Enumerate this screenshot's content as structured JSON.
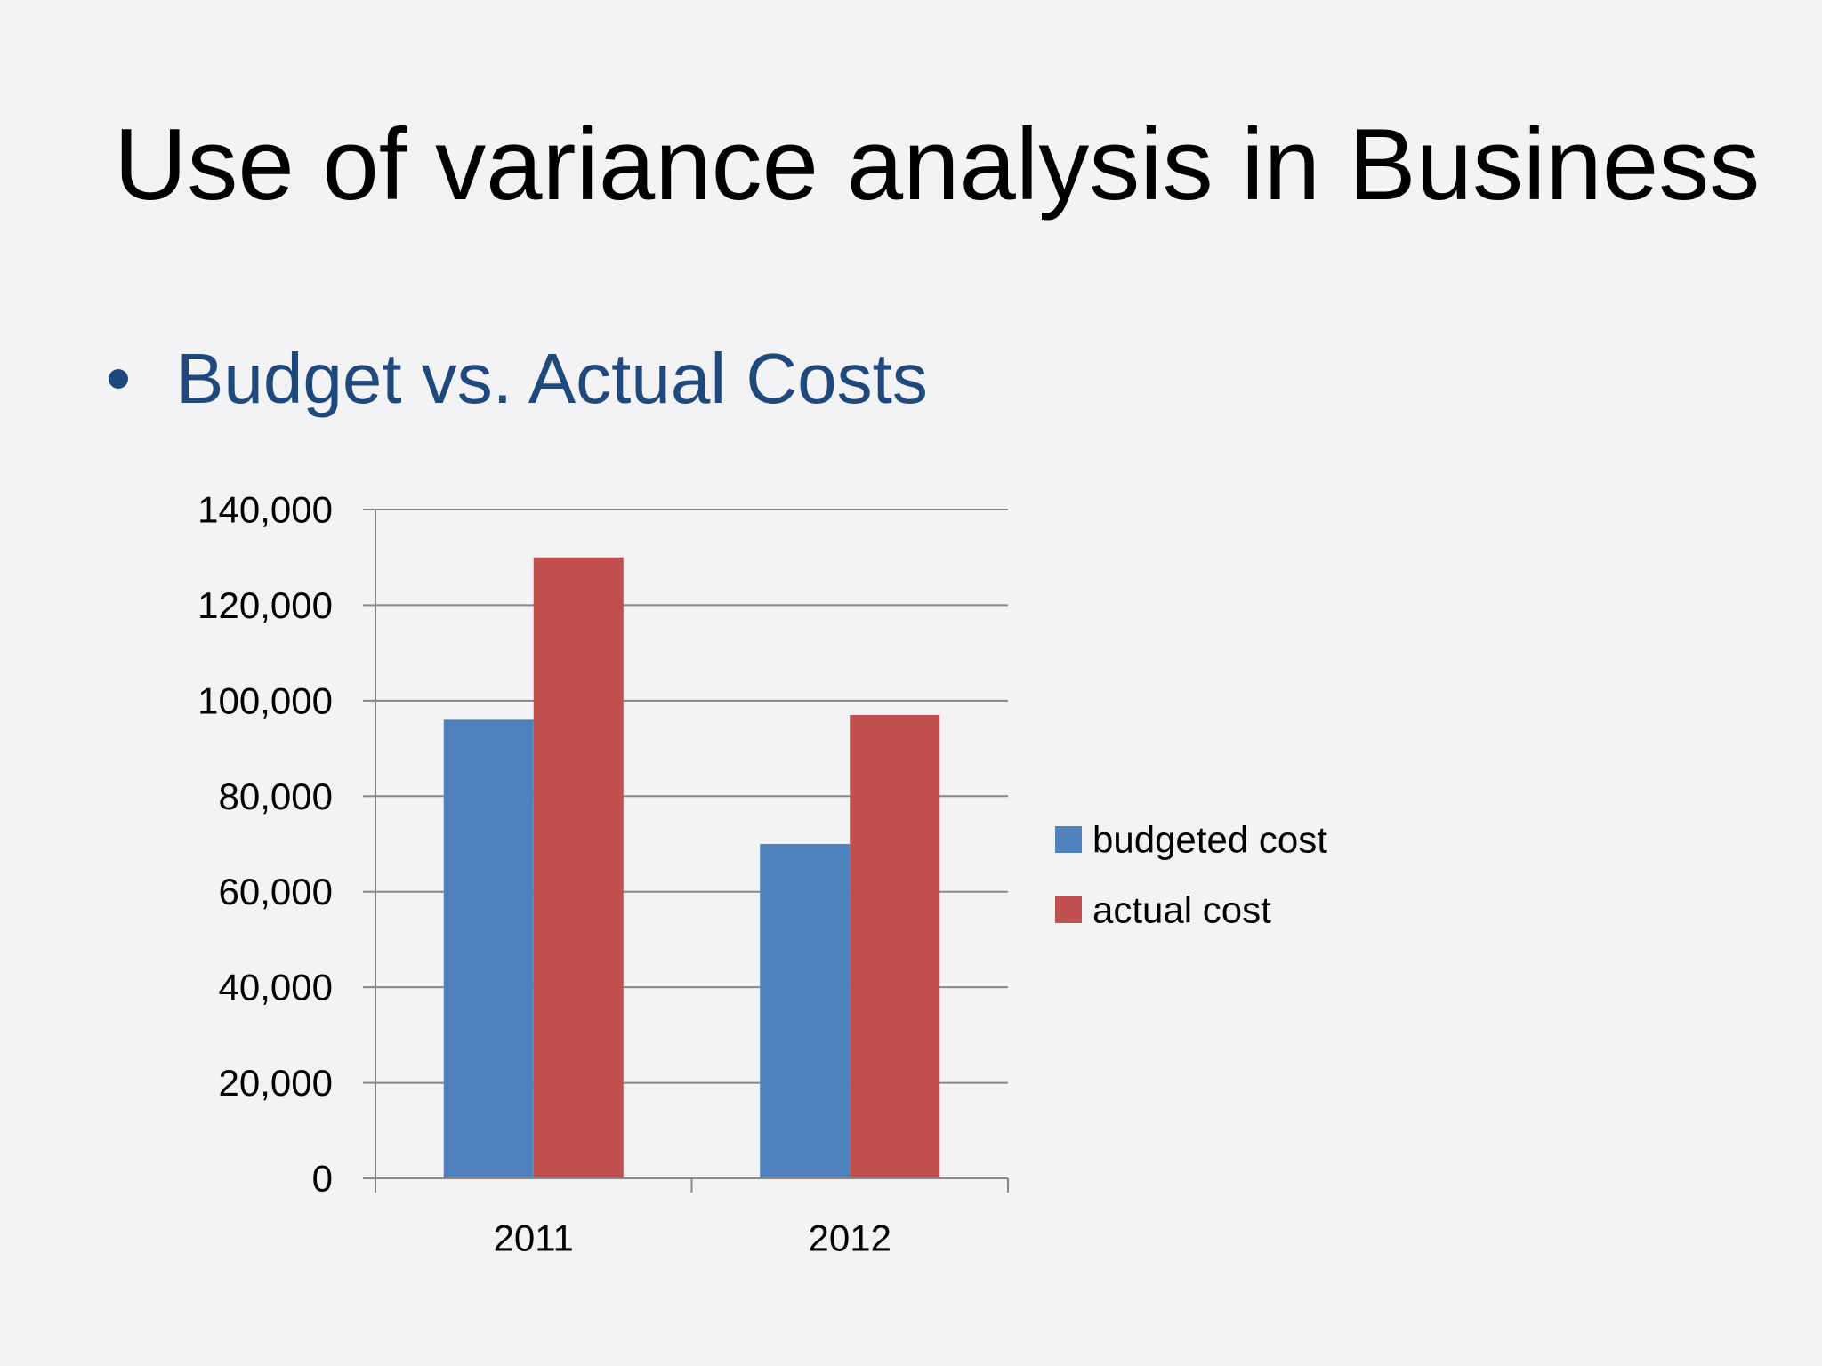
{
  "slide": {
    "title": "Use of variance analysis in Business",
    "bullet": "Budget vs. Actual Costs"
  },
  "colors": {
    "background": "#f3f2f5",
    "title": "#000000",
    "bullet_text": "#1f497d",
    "bullet_dot": "#1f497d",
    "budgeted": "#4f81bd",
    "actual": "#c0504d",
    "gridline": "#878787",
    "axis_text": "#000000"
  },
  "chart_data": {
    "type": "bar",
    "categories": [
      "2011",
      "2012"
    ],
    "series": [
      {
        "name": "budgeted cost",
        "values": [
          96000,
          70000
        ]
      },
      {
        "name": "actual cost",
        "values": [
          130000,
          97000
        ]
      }
    ],
    "ylim": [
      0,
      140000
    ],
    "yticks": [
      0,
      20000,
      40000,
      60000,
      80000,
      100000,
      120000,
      140000
    ],
    "ytick_labels": [
      "0",
      "20,000",
      "40,000",
      "60,000",
      "80,000",
      "100,000",
      "120,000",
      "140,000"
    ],
    "grid": true,
    "legend_position": "right",
    "title": "",
    "xlabel": "",
    "ylabel": ""
  }
}
